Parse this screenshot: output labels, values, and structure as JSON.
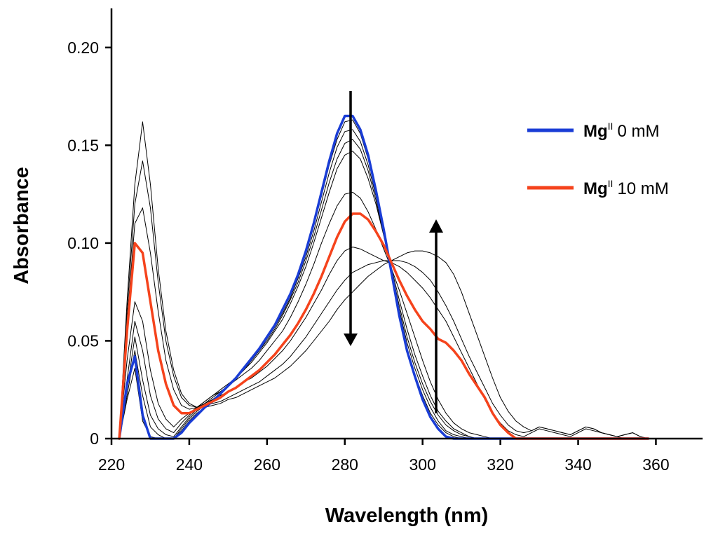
{
  "chart_data": {
    "type": "line",
    "xlabel": "Wavelength (nm)",
    "ylabel": "Absorbance",
    "xlim": [
      220,
      372
    ],
    "ylim": [
      0,
      0.22
    ],
    "xticks": [
      220,
      240,
      260,
      280,
      300,
      320,
      340,
      360
    ],
    "yticks": [
      0,
      0.05,
      0.1,
      0.15,
      0.2
    ],
    "ytick_labels": [
      "0",
      "0.05",
      "0.10",
      "0.15",
      "0.20"
    ],
    "legend_position": "top-right",
    "legend": [
      {
        "label_main": "Mg",
        "label_sup": "II",
        "label_rest": "0 mM",
        "color": "#1a3dd6"
      },
      {
        "label_main": "Mg",
        "label_sup": "II",
        "label_rest": "10 mM",
        "color": "#f5431c"
      }
    ],
    "x": [
      222,
      224,
      226,
      228,
      230,
      232,
      234,
      236,
      238,
      240,
      242,
      244,
      246,
      248,
      250,
      252,
      254,
      256,
      258,
      260,
      262,
      264,
      266,
      268,
      270,
      272,
      274,
      276,
      278,
      280,
      282,
      284,
      286,
      288,
      290,
      292,
      294,
      296,
      298,
      300,
      302,
      304,
      306,
      308,
      310,
      312,
      314,
      316,
      318,
      320,
      322,
      324,
      326,
      328,
      330,
      332,
      334,
      336,
      338,
      340,
      342,
      344,
      346,
      348,
      350,
      352,
      354,
      356,
      358
    ],
    "series": [
      {
        "color": "#1a3dd6",
        "width": 3.5,
        "values": [
          0,
          0.028,
          0.042,
          0.012,
          0,
          0,
          0,
          0,
          0.003,
          0.008,
          0.012,
          0.016,
          0.019,
          0.023,
          0.027,
          0.031,
          0.036,
          0.041,
          0.046,
          0.052,
          0.058,
          0.066,
          0.074,
          0.084,
          0.096,
          0.11,
          0.126,
          0.142,
          0.156,
          0.165,
          0.165,
          0.158,
          0.145,
          0.127,
          0.107,
          0.085,
          0.063,
          0.045,
          0.032,
          0.02,
          0.011,
          0.005,
          0.001,
          0,
          0,
          0,
          0,
          0,
          0,
          0,
          0,
          0,
          0,
          0,
          0,
          0,
          0,
          0,
          0,
          0,
          0,
          0,
          0,
          0,
          0,
          0,
          0,
          0,
          0
        ]
      },
      {
        "color": "#000000",
        "width": 1,
        "values": [
          0,
          0.02,
          0.036,
          0.009,
          0.001,
          0,
          0,
          0,
          0.004,
          0.009,
          0.013,
          0.016,
          0.019,
          0.023,
          0.027,
          0.031,
          0.036,
          0.041,
          0.046,
          0.052,
          0.058,
          0.066,
          0.074,
          0.084,
          0.095,
          0.109,
          0.124,
          0.14,
          0.153,
          0.162,
          0.163,
          0.156,
          0.143,
          0.126,
          0.106,
          0.085,
          0.064,
          0.046,
          0.033,
          0.022,
          0.013,
          0.007,
          0.003,
          0.001,
          0,
          0,
          0,
          0,
          0,
          0,
          0,
          0,
          0,
          0,
          0,
          0,
          0,
          0,
          0,
          0,
          0,
          0,
          0,
          0,
          0,
          0,
          0,
          0,
          0
        ]
      },
      {
        "color": "#000000",
        "width": 1,
        "values": [
          0,
          0.022,
          0.045,
          0.022,
          0.006,
          0.002,
          0,
          0,
          0.005,
          0.01,
          0.014,
          0.017,
          0.02,
          0.023,
          0.027,
          0.031,
          0.035,
          0.04,
          0.045,
          0.051,
          0.057,
          0.064,
          0.072,
          0.082,
          0.093,
          0.106,
          0.121,
          0.136,
          0.149,
          0.157,
          0.158,
          0.152,
          0.14,
          0.124,
          0.105,
          0.085,
          0.066,
          0.049,
          0.036,
          0.025,
          0.016,
          0.009,
          0.004,
          0.002,
          0.001,
          0,
          0,
          0,
          0,
          0,
          0,
          0,
          0,
          0,
          0,
          0,
          0,
          0,
          0,
          0,
          0,
          0,
          0,
          0,
          0,
          0,
          0,
          0,
          0
        ]
      },
      {
        "color": "#000000",
        "width": 1,
        "values": [
          0,
          0.025,
          0.052,
          0.03,
          0.012,
          0.005,
          0.002,
          0.001,
          0.006,
          0.011,
          0.015,
          0.018,
          0.021,
          0.024,
          0.027,
          0.031,
          0.035,
          0.04,
          0.045,
          0.05,
          0.056,
          0.063,
          0.071,
          0.08,
          0.091,
          0.103,
          0.117,
          0.131,
          0.143,
          0.151,
          0.153,
          0.148,
          0.137,
          0.122,
          0.104,
          0.086,
          0.068,
          0.052,
          0.039,
          0.028,
          0.019,
          0.012,
          0.007,
          0.004,
          0.002,
          0.001,
          0,
          0,
          0,
          0,
          0,
          0,
          0,
          0,
          0,
          0,
          0,
          0,
          0,
          0,
          0,
          0,
          0,
          0,
          0,
          0,
          0,
          0,
          0
        ]
      },
      {
        "color": "#000000",
        "width": 1,
        "values": [
          0,
          0.03,
          0.06,
          0.045,
          0.022,
          0.01,
          0.005,
          0.003,
          0.008,
          0.012,
          0.016,
          0.019,
          0.022,
          0.025,
          0.028,
          0.031,
          0.035,
          0.039,
          0.044,
          0.049,
          0.055,
          0.061,
          0.069,
          0.078,
          0.088,
          0.1,
          0.113,
          0.126,
          0.138,
          0.145,
          0.147,
          0.143,
          0.133,
          0.12,
          0.104,
          0.087,
          0.071,
          0.056,
          0.043,
          0.032,
          0.022,
          0.014,
          0.009,
          0.005,
          0.003,
          0.001,
          0,
          0,
          0,
          0,
          0,
          0,
          0,
          0,
          0,
          0,
          0,
          0,
          0,
          0,
          0,
          0,
          0,
          0,
          0,
          0,
          0,
          0,
          0
        ]
      },
      {
        "color": "#000000",
        "width": 1,
        "values": [
          0,
          0.04,
          0.07,
          0.06,
          0.035,
          0.018,
          0.01,
          0.006,
          0.01,
          0.013,
          0.016,
          0.019,
          0.022,
          0.024,
          0.027,
          0.03,
          0.033,
          0.036,
          0.04,
          0.045,
          0.05,
          0.055,
          0.062,
          0.07,
          0.079,
          0.089,
          0.1,
          0.11,
          0.119,
          0.125,
          0.126,
          0.123,
          0.116,
          0.107,
          0.097,
          0.087,
          0.076,
          0.064,
          0.052,
          0.04,
          0.029,
          0.02,
          0.013,
          0.008,
          0.005,
          0.003,
          0.002,
          0.001,
          0,
          0,
          0,
          0,
          0,
          0,
          0,
          0,
          0,
          0,
          0,
          0,
          0,
          0,
          0,
          0,
          0,
          0,
          0,
          0,
          0
        ]
      },
      {
        "color": "#f5431c",
        "width": 3.5,
        "values": [
          0,
          0.055,
          0.1,
          0.095,
          0.07,
          0.045,
          0.028,
          0.017,
          0.013,
          0.013,
          0.015,
          0.017,
          0.019,
          0.021,
          0.024,
          0.026,
          0.029,
          0.032,
          0.035,
          0.039,
          0.043,
          0.048,
          0.053,
          0.059,
          0.066,
          0.074,
          0.083,
          0.093,
          0.103,
          0.111,
          0.115,
          0.115,
          0.112,
          0.106,
          0.099,
          0.09,
          0.081,
          0.073,
          0.066,
          0.06,
          0.056,
          0.051,
          0.049,
          0.045,
          0.04,
          0.033,
          0.027,
          0.021,
          0.013,
          0.007,
          0.003,
          0,
          0,
          0,
          0,
          0,
          0,
          0,
          0,
          0,
          0,
          0,
          0,
          0,
          0,
          0,
          0,
          0,
          0
        ]
      },
      {
        "color": "#000000",
        "width": 1,
        "values": [
          0,
          0.06,
          0.11,
          0.118,
          0.095,
          0.065,
          0.04,
          0.025,
          0.017,
          0.015,
          0.016,
          0.018,
          0.02,
          0.022,
          0.024,
          0.026,
          0.029,
          0.031,
          0.034,
          0.037,
          0.041,
          0.045,
          0.05,
          0.056,
          0.062,
          0.069,
          0.076,
          0.084,
          0.091,
          0.096,
          0.098,
          0.097,
          0.095,
          0.093,
          0.091,
          0.09,
          0.088,
          0.085,
          0.081,
          0.077,
          0.072,
          0.066,
          0.06,
          0.052,
          0.044,
          0.036,
          0.028,
          0.02,
          0.013,
          0.008,
          0.004,
          0.002,
          0.001,
          0.003,
          0.005,
          0.004,
          0.003,
          0.002,
          0.001,
          0.003,
          0.005,
          0.004,
          0.003,
          0.002,
          0.001,
          0,
          0,
          0,
          0
        ]
      },
      {
        "color": "#000000",
        "width": 1,
        "values": [
          0,
          0.065,
          0.12,
          0.142,
          0.118,
          0.08,
          0.05,
          0.032,
          0.021,
          0.017,
          0.016,
          0.017,
          0.018,
          0.019,
          0.021,
          0.023,
          0.025,
          0.027,
          0.029,
          0.032,
          0.035,
          0.038,
          0.042,
          0.047,
          0.052,
          0.058,
          0.064,
          0.07,
          0.076,
          0.081,
          0.085,
          0.087,
          0.089,
          0.09,
          0.091,
          0.091,
          0.091,
          0.09,
          0.088,
          0.085,
          0.081,
          0.075,
          0.068,
          0.06,
          0.051,
          0.042,
          0.034,
          0.026,
          0.018,
          0.012,
          0.007,
          0.004,
          0.003,
          0.004,
          0.006,
          0.005,
          0.004,
          0.003,
          0.002,
          0.004,
          0.006,
          0.005,
          0.003,
          0.002,
          0.001,
          0.002,
          0.003,
          0.001,
          0
        ]
      },
      {
        "color": "#000000",
        "width": 1,
        "values": [
          0,
          0.07,
          0.13,
          0.162,
          0.13,
          0.087,
          0.055,
          0.035,
          0.023,
          0.018,
          0.016,
          0.016,
          0.017,
          0.018,
          0.02,
          0.021,
          0.023,
          0.025,
          0.027,
          0.029,
          0.031,
          0.034,
          0.037,
          0.041,
          0.045,
          0.05,
          0.055,
          0.06,
          0.066,
          0.071,
          0.075,
          0.079,
          0.083,
          0.086,
          0.089,
          0.091,
          0.093,
          0.095,
          0.096,
          0.096,
          0.095,
          0.093,
          0.09,
          0.084,
          0.075,
          0.064,
          0.053,
          0.042,
          0.031,
          0.021,
          0.014,
          0.009,
          0.006,
          0.004,
          0.006,
          0.005,
          0.004,
          0.003,
          0.002,
          0.004,
          0.006,
          0.005,
          0.003,
          0.002,
          0.001,
          0.002,
          0.003,
          0.001,
          0
        ]
      }
    ]
  }
}
